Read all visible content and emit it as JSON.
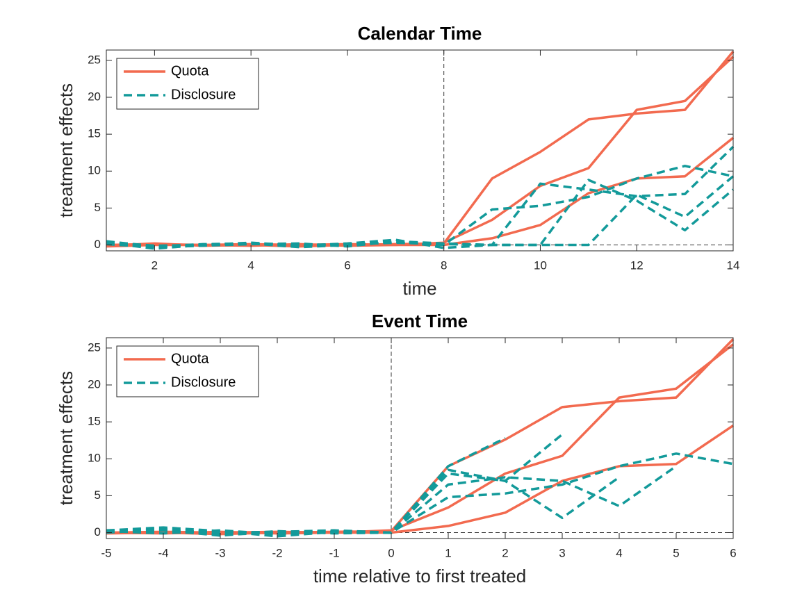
{
  "chart_data": [
    {
      "type": "line",
      "title": "Calendar Time",
      "xlabel": "time",
      "ylabel": "treatment effects",
      "x": [
        1,
        2,
        3,
        4,
        5,
        6,
        7,
        8,
        9,
        10,
        11,
        12,
        13,
        14
      ],
      "xlim": [
        1,
        14
      ],
      "xticks": [
        2,
        4,
        6,
        8,
        10,
        12,
        14
      ],
      "ylim": [
        -0.8,
        26.4
      ],
      "yticks": [
        0,
        5,
        10,
        15,
        20,
        25
      ],
      "vline": 8,
      "hline": 0,
      "legend": "upper left",
      "series": [
        {
          "name": "Quota",
          "color": "#f26a4f",
          "style": "solid",
          "lines": [
            [
              -0.1,
              0.2,
              -0.1,
              0.0,
              -0.2,
              0.0,
              0.1,
              0.2,
              9.0,
              12.6,
              17.0,
              17.8,
              18.3,
              26.2
            ],
            [
              0.0,
              0.1,
              0.0,
              0.1,
              0.0,
              0.1,
              0.0,
              0.3,
              3.4,
              8.0,
              10.4,
              18.3,
              19.5,
              25.5
            ],
            [
              -0.2,
              0.0,
              0.0,
              -0.1,
              0.1,
              -0.1,
              0.0,
              0.0,
              0.9,
              2.7,
              7.0,
              9.0,
              9.3,
              14.5
            ]
          ]
        },
        {
          "name": "Disclosure",
          "color": "#139a9a",
          "style": "dashed",
          "lines": [
            [
              0.5,
              -0.2,
              0.1,
              0.2,
              -0.3,
              0.0,
              0.4,
              0.0,
              4.8,
              5.3,
              6.5,
              9.0,
              10.7,
              9.3
            ],
            [
              0.3,
              -0.5,
              0.0,
              0.3,
              -0.1,
              0.2,
              0.7,
              -0.4,
              0.0,
              8.3,
              7.5,
              6.6,
              6.9,
              13.3
            ],
            [
              0.1,
              -0.3,
              -0.1,
              0.1,
              0.2,
              -0.2,
              0.5,
              0.2,
              0.0,
              0.0,
              8.8,
              6.0,
              2.0,
              7.5
            ],
            [
              0.4,
              -0.1,
              0.0,
              0.2,
              0.0,
              0.1,
              0.3,
              0.1,
              0.0,
              0.0,
              0.0,
              6.8,
              3.8,
              9.3
            ]
          ]
        }
      ]
    },
    {
      "type": "line",
      "title": "Event Time",
      "xlabel": "time relative to first treated",
      "ylabel": "treatment effects",
      "x": [
        -5,
        -4,
        -3,
        -2,
        -1,
        0,
        1,
        2,
        3,
        4,
        5,
        6
      ],
      "xlim": [
        -5,
        6
      ],
      "xticks": [
        -5,
        -4,
        -3,
        -2,
        -1,
        0,
        1,
        2,
        3,
        4,
        5,
        6
      ],
      "ylim": [
        -0.8,
        26.4
      ],
      "yticks": [
        0,
        5,
        10,
        15,
        20,
        25
      ],
      "vline": 0,
      "hline": 0,
      "legend": "upper left",
      "series": [
        {
          "name": "Quota",
          "color": "#f26a4f",
          "style": "solid",
          "lines": [
            [
              -0.1,
              0.0,
              -0.2,
              0.0,
              0.1,
              0.2,
              9.0,
              12.6,
              17.0,
              17.8,
              18.3,
              26.2
            ],
            [
              0.0,
              0.1,
              0.0,
              0.1,
              0.0,
              0.3,
              3.4,
              8.0,
              10.4,
              18.3,
              19.5,
              25.5
            ],
            [
              0.0,
              -0.1,
              0.1,
              -0.1,
              0.0,
              0.0,
              0.9,
              2.7,
              7.0,
              9.0,
              9.3,
              14.5
            ]
          ]
        },
        {
          "name": "Disclosure",
          "color": "#139a9a",
          "style": "dashed",
          "lines": [
            [
              0.2,
              0.5,
              -0.3,
              0.0,
              0.2,
              0.0,
              4.8,
              5.3,
              6.5,
              9.0,
              10.7,
              9.3
            ],
            [
              0.3,
              0.7,
              0.2,
              -0.5,
              0.1,
              0.0,
              6.5,
              7.5,
              7.0,
              3.6,
              9.0,
              null
            ],
            [
              0.1,
              0.3,
              -0.4,
              0.2,
              -0.1,
              0.0,
              8.5,
              7.0,
              2.0,
              7.5,
              null,
              null
            ],
            [
              0.0,
              0.4,
              0.0,
              0.1,
              0.3,
              0.0,
              9.0,
              12.8,
              null,
              null,
              null,
              null
            ],
            [
              0.2,
              -0.1,
              0.3,
              -0.2,
              0.1,
              0.0,
              8.0,
              7.0,
              13.3,
              null,
              null,
              null
            ]
          ]
        }
      ]
    }
  ]
}
